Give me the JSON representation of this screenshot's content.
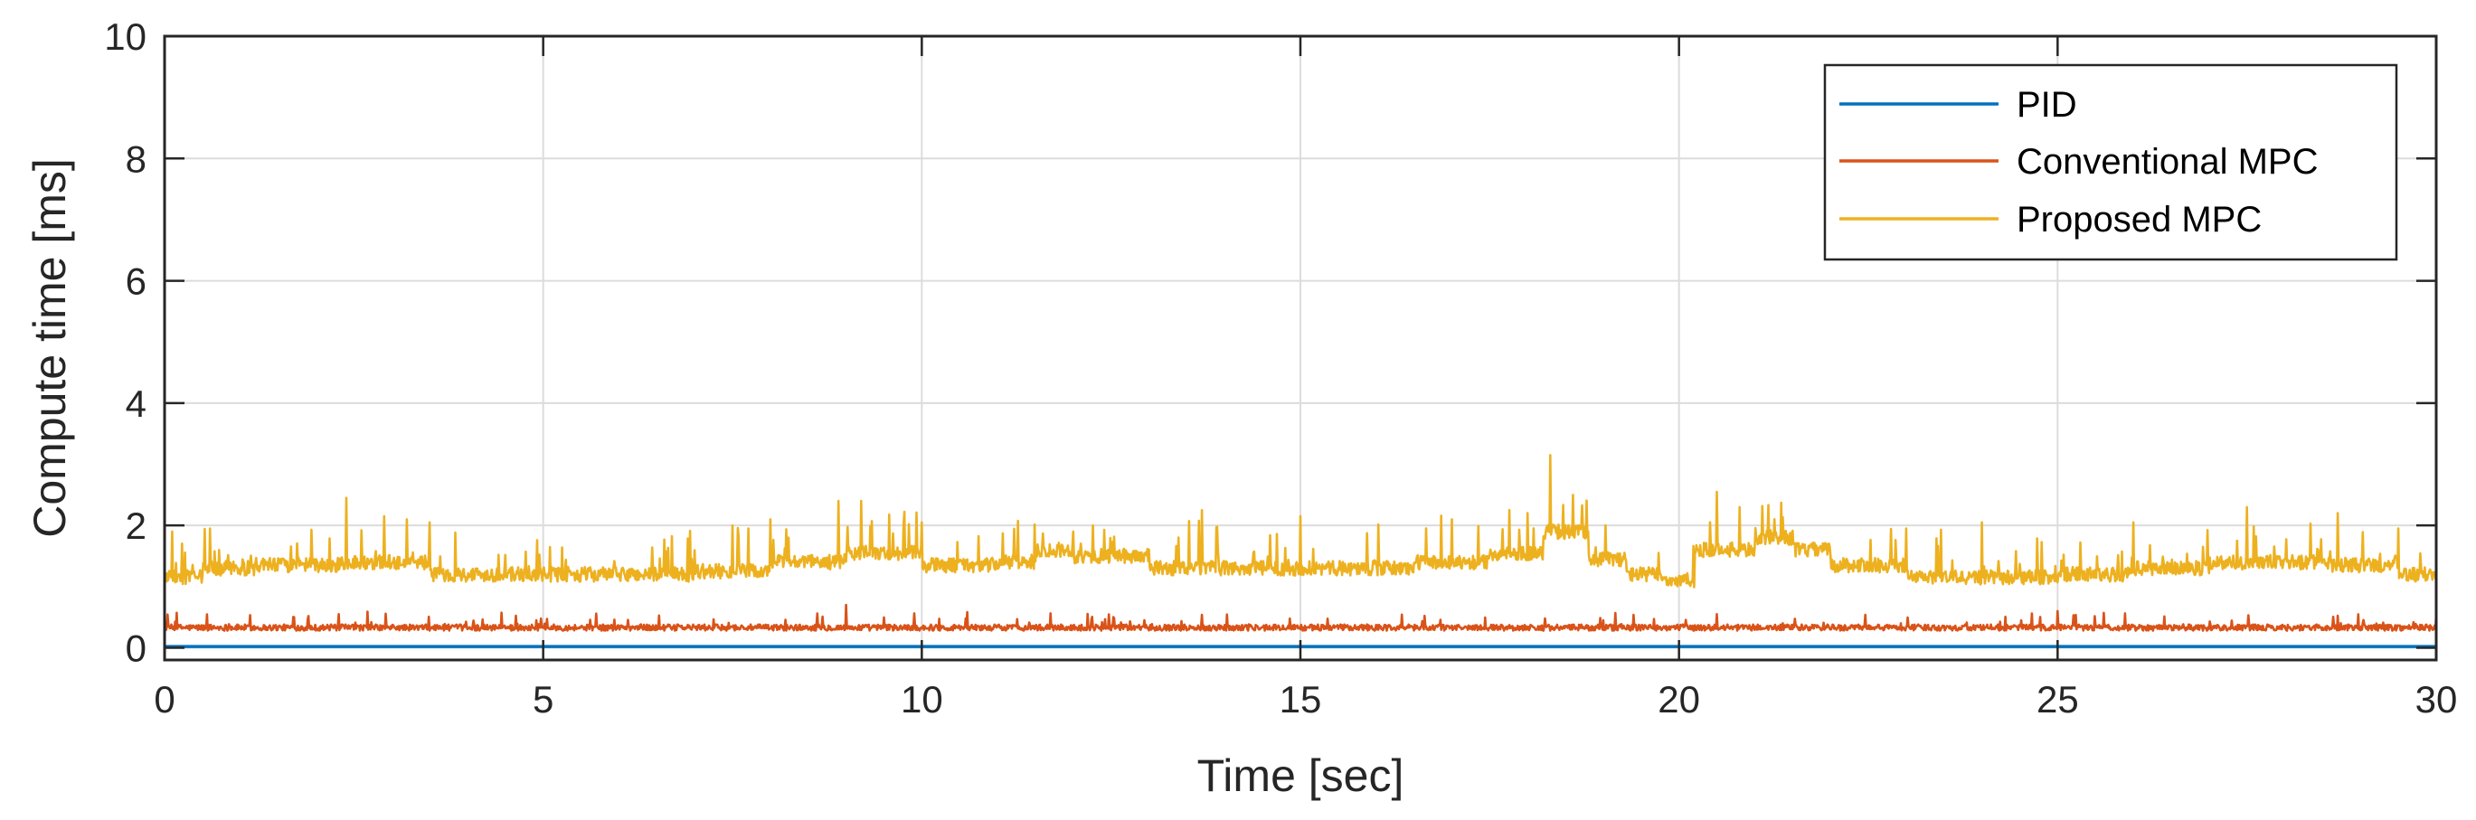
{
  "chart_data": {
    "type": "line",
    "title": "",
    "xlabel": "Time [sec]",
    "ylabel": "Compute time [ms]",
    "xlim": [
      0,
      30
    ],
    "ylim": [
      -0.2,
      10
    ],
    "xticks": [
      0,
      5,
      10,
      15,
      20,
      25,
      30
    ],
    "yticks": [
      0,
      2,
      4,
      6,
      8,
      10
    ],
    "xtick_labels": [
      "0",
      "5",
      "10",
      "15",
      "20",
      "25",
      "30"
    ],
    "ytick_labels": [
      "0",
      "2",
      "4",
      "6",
      "8",
      "10"
    ],
    "grid": true,
    "legend_position": "top-right",
    "series": [
      {
        "name": "PID",
        "color": "#0072BD",
        "base": 0.02,
        "levels": [
          [
            0,
            0.02
          ],
          [
            30,
            0.02
          ]
        ],
        "noise": 0.0,
        "spike_prob": 0.0,
        "spike_max": 0.0,
        "peaks": []
      },
      {
        "name": "Conventional MPC",
        "color": "#D95319",
        "levels": [
          [
            0,
            0.33
          ],
          [
            30,
            0.33
          ]
        ],
        "noise": 0.05,
        "spike_prob": 0.05,
        "spike_max": 0.25,
        "peaks": [
          [
            2.3,
            0.55
          ],
          [
            9.0,
            0.7
          ],
          [
            20.5,
            0.55
          ],
          [
            25.0,
            0.6
          ],
          [
            30.0,
            0.55
          ]
        ]
      },
      {
        "name": "Proposed MPC",
        "color": "#EDB120",
        "levels": [
          [
            0,
            1.15
          ],
          [
            0.5,
            1.3
          ],
          [
            1.2,
            1.35
          ],
          [
            2.3,
            1.4
          ],
          [
            3.5,
            1.2
          ],
          [
            5.0,
            1.2
          ],
          [
            7.0,
            1.25
          ],
          [
            8.0,
            1.4
          ],
          [
            9.0,
            1.55
          ],
          [
            10.0,
            1.35
          ],
          [
            11.0,
            1.4
          ],
          [
            11.5,
            1.6
          ],
          [
            12.0,
            1.5
          ],
          [
            13.0,
            1.3
          ],
          [
            15.0,
            1.3
          ],
          [
            16.5,
            1.4
          ],
          [
            17.5,
            1.55
          ],
          [
            18.2,
            1.9
          ],
          [
            18.8,
            1.45
          ],
          [
            19.3,
            1.2
          ],
          [
            19.8,
            1.1
          ],
          [
            20.2,
            1.6
          ],
          [
            21.0,
            1.8
          ],
          [
            21.5,
            1.6
          ],
          [
            22.0,
            1.35
          ],
          [
            23.0,
            1.15
          ],
          [
            25.0,
            1.2
          ],
          [
            26.0,
            1.3
          ],
          [
            27.0,
            1.4
          ],
          [
            28.5,
            1.35
          ],
          [
            29.5,
            1.2
          ],
          [
            30.0,
            1.35
          ]
        ],
        "noise": 0.12,
        "spike_prob": 0.06,
        "spike_max": 0.7,
        "peaks": [
          [
            0.1,
            1.9
          ],
          [
            0.6,
            1.95
          ],
          [
            2.4,
            2.45
          ],
          [
            2.9,
            2.15
          ],
          [
            3.2,
            2.1
          ],
          [
            3.5,
            2.05
          ],
          [
            7.5,
            2.0
          ],
          [
            8.0,
            2.1
          ],
          [
            8.9,
            2.4
          ],
          [
            9.2,
            2.4
          ],
          [
            10.0,
            2.05
          ],
          [
            12.0,
            1.9
          ],
          [
            13.7,
            2.25
          ],
          [
            15.0,
            2.15
          ],
          [
            17.0,
            2.1
          ],
          [
            18.0,
            2.2
          ],
          [
            18.3,
            3.15
          ],
          [
            18.6,
            2.5
          ],
          [
            20.5,
            2.55
          ],
          [
            20.8,
            2.3
          ],
          [
            23.0,
            1.95
          ],
          [
            24.0,
            2.05
          ],
          [
            26.0,
            2.05
          ],
          [
            27.5,
            2.3
          ],
          [
            28.7,
            2.2
          ],
          [
            29.5,
            1.95
          ]
        ]
      }
    ]
  }
}
